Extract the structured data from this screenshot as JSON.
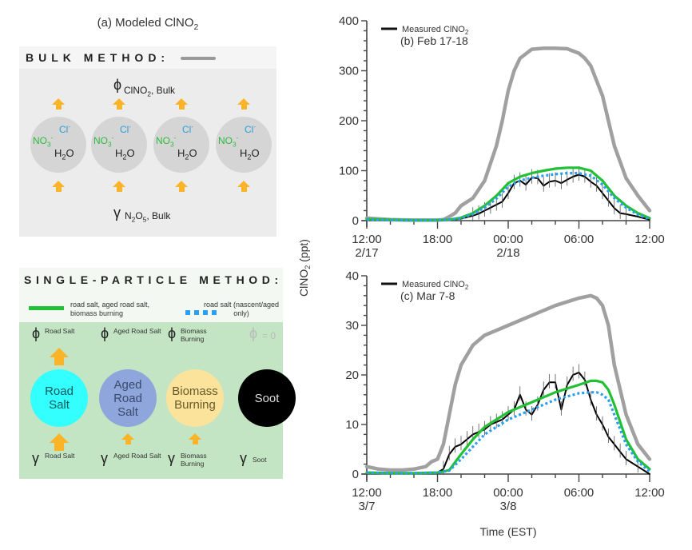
{
  "panel_a": {
    "title": "(a) Modeled ClNO",
    "title_sub": "2",
    "bulk": {
      "header": "BULK METHOD:",
      "phi_label": "ClNO",
      "phi_sub": "2",
      "phi_suffix": ", Bulk",
      "gamma_label": "N",
      "gamma_sub1": "2",
      "gamma_mid": "O",
      "gamma_sub2": "5",
      "gamma_suffix": ", Bulk",
      "particle_species": {
        "cl": "Cl",
        "cl_sup": "-",
        "no3": "NO",
        "no3_sub": "3",
        "no3_sup": "-",
        "h2o": "H",
        "h2o_sub": "2",
        "h2o_end": "O"
      },
      "particle_count": 4
    },
    "single_particle": {
      "header": "SINGLE-PARTICLE METHOD:",
      "legend_green": "road salt, aged road salt, biomass burning",
      "legend_blue": "road salt (nascent/aged only)",
      "phi_zero": "= 0",
      "particles": [
        {
          "name": "Road Salt",
          "phi": "Road Salt",
          "gamma": "Road Salt",
          "color": "#33ffff",
          "text_color": "#1a5a5a"
        },
        {
          "name": "Aged Road Salt",
          "phi": "Aged Road Salt",
          "gamma": "Aged Road Salt",
          "color": "#8fa6dc",
          "text_color": "#3a4a6a"
        },
        {
          "name": "Biomass Burning",
          "phi": "Biomass Burning",
          "gamma": "Biomass Burning",
          "color": "#fbe39c",
          "text_color": "#6a5a2a"
        },
        {
          "name": "Soot",
          "phi": "",
          "gamma": "Soot",
          "color": "#000000",
          "text_color": "#dddddd"
        }
      ]
    },
    "symbols": {
      "phi": "ϕ",
      "gamma": "γ"
    }
  },
  "colors": {
    "bulk": "#a0a0a0",
    "single_particle": "#22c035",
    "road_salt": "#2a9ff0",
    "measured": "#000000",
    "arrow": "#fbb328"
  },
  "chart_data": [
    {
      "type": "line",
      "title": "(b) Feb 17-18",
      "legend": "Measured ClNO",
      "legend_sub": "2",
      "xlabel": "",
      "ylabel": "ClNO2 (ppt)",
      "ylim": [
        0,
        400
      ],
      "yticks": [
        0,
        100,
        200,
        300,
        400
      ],
      "xlim": [
        0,
        24
      ],
      "x_unit": "hours since 12:00 2/17",
      "xticks": [
        {
          "x": 0,
          "line1": "12:00",
          "line2": "2/17"
        },
        {
          "x": 6,
          "line1": "18:00",
          "line2": ""
        },
        {
          "x": 12,
          "line1": "00:00",
          "line2": "2/18"
        },
        {
          "x": 18,
          "line1": "06:00",
          "line2": ""
        },
        {
          "x": 24,
          "line1": "12:00",
          "line2": ""
        }
      ],
      "series": [
        {
          "name": "Bulk method",
          "style": "gray",
          "x": [
            0,
            2,
            4,
            6,
            6.5,
            7,
            7.5,
            8,
            9,
            10,
            11,
            11.5,
            12,
            12.5,
            13,
            14,
            15,
            16,
            17,
            18,
            18.5,
            19,
            20,
            21,
            22,
            23,
            24
          ],
          "y": [
            5,
            2,
            1,
            1,
            2,
            8,
            15,
            30,
            45,
            80,
            150,
            200,
            260,
            300,
            325,
            343,
            345,
            345,
            344,
            335,
            325,
            310,
            250,
            150,
            85,
            50,
            20
          ]
        },
        {
          "name": "Single-particle method",
          "style": "green",
          "x": [
            0,
            2,
            4,
            6,
            7,
            8,
            9,
            10,
            11,
            12,
            13,
            14,
            15,
            16,
            17,
            18,
            19,
            20,
            21,
            22,
            23,
            24
          ],
          "y": [
            3,
            2,
            1,
            1,
            2,
            6,
            15,
            30,
            50,
            75,
            88,
            95,
            100,
            104,
            106,
            106,
            100,
            80,
            50,
            30,
            15,
            5
          ]
        },
        {
          "name": "Road salt (nascent/aged only)",
          "style": "blue",
          "x": [
            0,
            2,
            4,
            6,
            7,
            8,
            9,
            10,
            11,
            12,
            13,
            14,
            15,
            16,
            17,
            18,
            19,
            20,
            21,
            22,
            23,
            24
          ],
          "y": [
            2,
            1,
            1,
            1,
            2,
            5,
            13,
            26,
            44,
            68,
            80,
            86,
            90,
            93,
            95,
            95,
            90,
            72,
            45,
            26,
            12,
            3
          ]
        },
        {
          "name": "Measured ClNO2",
          "style": "black",
          "x": [
            0,
            2,
            4,
            6,
            7,
            8,
            9,
            9.5,
            10,
            10.5,
            11,
            11.5,
            12,
            12.5,
            13,
            13.5,
            14,
            14.5,
            15,
            15.5,
            16,
            16.5,
            17,
            17.5,
            18,
            18.5,
            19,
            19.5,
            20,
            20.5,
            21,
            21.5,
            22,
            23,
            24
          ],
          "y": [
            2,
            1,
            0,
            0,
            1,
            4,
            10,
            14,
            20,
            26,
            32,
            38,
            55,
            75,
            80,
            72,
            86,
            85,
            70,
            78,
            80,
            75,
            82,
            88,
            92,
            88,
            78,
            70,
            55,
            40,
            25,
            15,
            13,
            8,
            2
          ]
        }
      ]
    },
    {
      "type": "line",
      "title": "(c) Mar 7-8",
      "legend": "Measured ClNO",
      "legend_sub": "2",
      "xlabel": "Time (EST)",
      "ylabel": "ClNO2 (ppt)",
      "ylim": [
        0,
        40
      ],
      "yticks": [
        0,
        10,
        20,
        30,
        40
      ],
      "xlim": [
        0,
        24
      ],
      "x_unit": "hours since 12:00 3/7",
      "xticks": [
        {
          "x": 0,
          "line1": "12:00",
          "line2": "3/7"
        },
        {
          "x": 6,
          "line1": "18:00",
          "line2": ""
        },
        {
          "x": 12,
          "line1": "00:00",
          "line2": "3/8"
        },
        {
          "x": 18,
          "line1": "06:00",
          "line2": ""
        },
        {
          "x": 24,
          "line1": "12:00",
          "line2": ""
        }
      ],
      "series": [
        {
          "name": "Bulk method",
          "style": "gray",
          "x": [
            0,
            1,
            2,
            3,
            4,
            5,
            5.5,
            6,
            6.5,
            7,
            7.5,
            8,
            9,
            10,
            12,
            14,
            16,
            18,
            19,
            19.5,
            20,
            20.5,
            21,
            22,
            23,
            24
          ],
          "y": [
            1.5,
            1,
            0.8,
            0.8,
            1,
            1.5,
            2.5,
            3,
            6,
            12,
            18,
            22,
            26,
            28,
            30,
            32,
            34,
            35.5,
            36,
            35.5,
            34,
            30,
            22,
            12,
            6,
            3
          ]
        },
        {
          "name": "Single-particle method",
          "style": "green",
          "x": [
            0,
            2,
            4,
            6,
            6.5,
            7,
            8,
            9,
            10,
            12,
            14,
            16,
            18,
            19,
            19.5,
            20,
            20.5,
            21,
            22,
            23,
            24
          ],
          "y": [
            0.3,
            0.2,
            0.2,
            0.3,
            0.5,
            0.8,
            4,
            7,
            9.5,
            12.5,
            14.5,
            16.5,
            18,
            18.8,
            18.8,
            18.5,
            17,
            14,
            7,
            3,
            1
          ]
        },
        {
          "name": "Road salt (nascent/aged only)",
          "style": "blue",
          "x": [
            0,
            2,
            4,
            6,
            6.5,
            7,
            8,
            9,
            10,
            12,
            14,
            16,
            18,
            19,
            19.5,
            20,
            20.5,
            21,
            22,
            23,
            24
          ],
          "y": [
            0.3,
            0.2,
            0.2,
            0.3,
            0.5,
            0.7,
            3,
            5.5,
            8,
            11,
            13,
            15,
            16.3,
            16.5,
            16.5,
            16,
            15,
            12,
            6,
            2.5,
            0.5
          ]
        },
        {
          "name": "Measured ClNO2",
          "style": "black",
          "x": [
            0,
            2,
            4,
            6,
            6.5,
            7,
            7.5,
            8,
            8.5,
            9,
            9.5,
            10,
            10.5,
            11,
            11.5,
            12,
            12.5,
            13,
            13.5,
            14,
            14.5,
            15,
            15.5,
            16,
            16.5,
            17,
            17.5,
            18,
            18.5,
            19,
            19.5,
            20,
            20.5,
            21,
            21.5,
            22,
            23,
            24
          ],
          "y": [
            0.3,
            0.2,
            0.2,
            0.3,
            1,
            4,
            5.5,
            6,
            7,
            8,
            8.5,
            9,
            10,
            10.5,
            11,
            12,
            13,
            16,
            13,
            12,
            14,
            17,
            18.5,
            18.5,
            13,
            18,
            20,
            20.5,
            19,
            15,
            12,
            10,
            7.5,
            6,
            4.5,
            3,
            1.5,
            0
          ]
        }
      ]
    }
  ]
}
